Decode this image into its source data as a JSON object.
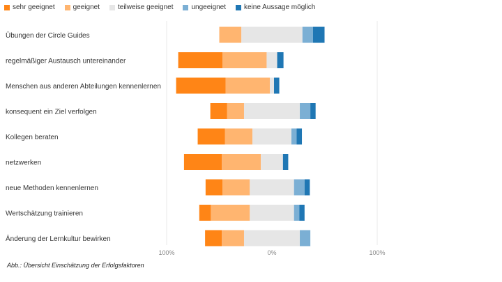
{
  "caption": "Abb.: Übersicht Einschätzung der Erfolgsfaktoren",
  "chart_data": {
    "type": "bar",
    "orientation": "horizontal",
    "stacked": "diverging",
    "legend_position": "top-left",
    "grid": false,
    "xlim": [
      -100,
      100
    ],
    "tick_labels": [
      "100%",
      "0%",
      "100%"
    ],
    "categories": [
      "Übungen der Circle Guides",
      "regelmäßiger Austausch untereinander",
      "Menschen aus anderen Abteilungen kennenlernen",
      "konsequent ein Ziel verfolgen",
      "Kollegen beraten",
      "netzwerken",
      "neue Methoden kennenlernen",
      "Wertschätzung trainieren",
      "Änderung der Lernkultur bewirken"
    ],
    "series": [
      {
        "name": "sehr geeignet",
        "color": "#FF8516",
        "values": [
          0,
          42,
          47,
          16,
          26,
          36,
          16,
          11,
          16
        ]
      },
      {
        "name": "geeignet",
        "color": "#FFB570",
        "values": [
          21,
          42,
          42,
          16,
          26,
          37,
          26,
          37,
          21
        ]
      },
      {
        "name": "teilweise geeignet",
        "color": "#E6E6E6",
        "values": [
          58,
          10,
          4,
          53,
          37,
          21,
          42,
          42,
          53
        ]
      },
      {
        "name": "ungeeignet",
        "color": "#7BAFD4",
        "values": [
          10,
          0,
          0,
          10,
          5,
          0,
          10,
          5,
          10
        ]
      },
      {
        "name": "keine Aussage möglich",
        "color": "#1F77B4",
        "values": [
          11,
          6,
          5,
          5,
          5,
          5,
          5,
          5,
          0
        ]
      }
    ]
  }
}
